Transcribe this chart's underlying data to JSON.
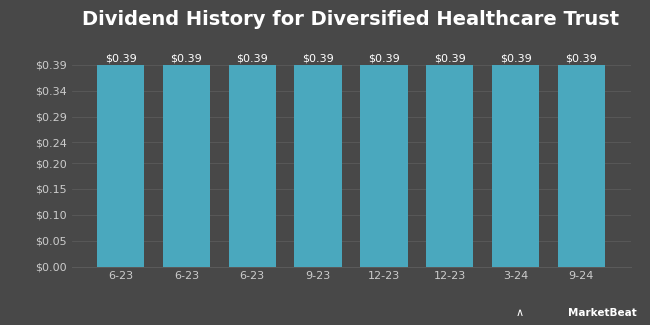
{
  "title": "Dividend History for Diversified Healthcare Trust",
  "categories": [
    "6-23",
    "6-23",
    "6-23",
    "9-23",
    "12-23",
    "12-23",
    "3-24",
    "9-24"
  ],
  "values": [
    0.39,
    0.39,
    0.39,
    0.39,
    0.39,
    0.39,
    0.39,
    0.39
  ],
  "bar_color": "#4aa8be",
  "background_color": "#484848",
  "plot_bg_color": "#484848",
  "text_color": "#cccccc",
  "grid_color": "#5a5a5a",
  "title_color": "#ffffff",
  "ylabel_ticks": [
    "$0.00",
    "$0.05",
    "$0.10",
    "$0.15",
    "$0.20",
    "$0.24",
    "$0.29",
    "$0.34",
    "$0.39"
  ],
  "ytick_vals": [
    0.0,
    0.05,
    0.1,
    0.15,
    0.2,
    0.24,
    0.29,
    0.34,
    0.39
  ],
  "ylim": [
    0,
    0.44
  ],
  "bar_label_fmt": "$0.39",
  "title_fontsize": 14,
  "tick_fontsize": 8,
  "label_fontsize": 8,
  "watermark": "MarketBeat"
}
